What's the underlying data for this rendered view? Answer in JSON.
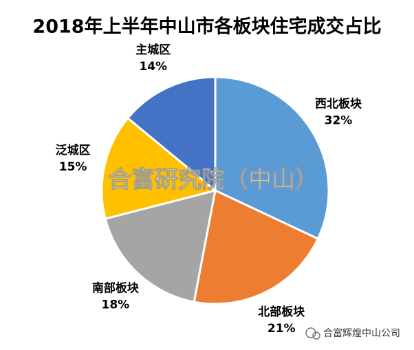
{
  "chart_data": {
    "type": "pie",
    "title": "2018年上半年中山市各板块住宅成交占比",
    "categories": [
      "西北板块",
      "北部板块",
      "南部板块",
      "泛城区",
      "主城区"
    ],
    "values": [
      32,
      21,
      18,
      15,
      14
    ],
    "value_labels": [
      "32%",
      "21%",
      "18%",
      "15%",
      "14%"
    ],
    "colors": [
      "#5b9bd5",
      "#ed7d31",
      "#a5a5a5",
      "#ffc000",
      "#4472c4"
    ],
    "watermark": "合富研究院（中山）",
    "footer": "合富辉煌中山公司"
  }
}
